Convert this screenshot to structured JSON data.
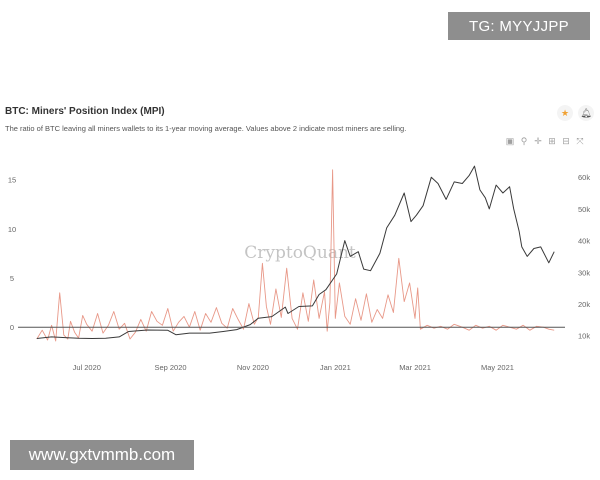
{
  "badges": {
    "top_right": "TG: MYYJJPP",
    "bottom_left": "www.gxtvmmb.com"
  },
  "header": {
    "title": "BTC: Miners' Position Index (MPI)",
    "subtitle": "The ratio of BTC leaving all miners wallets to its 1-year moving average. Values above 2 indicate most miners are selling."
  },
  "icons": {
    "favorite": "star-icon",
    "notify": "bell-icon",
    "toolbar": [
      "camera-icon",
      "zoom-icon",
      "pan-icon",
      "zoom-in-icon",
      "zoom-out-icon",
      "reset-axes-icon"
    ]
  },
  "watermark": "CryptoQuant",
  "colors": {
    "mpi": "#e89888",
    "price": "#3a3a3a",
    "zero_line": "#555555"
  },
  "chart_data": {
    "type": "line",
    "title": "BTC: Miners' Position Index (MPI)",
    "x_ticks": [
      "Jul 2020",
      "Sep 2020",
      "Nov 2020",
      "Jan 2021",
      "Mar 2021",
      "May 2021"
    ],
    "y_left_ticks": [
      "0",
      "5",
      "10",
      "15"
    ],
    "y_left_range": [
      -1.5,
      17.5
    ],
    "y_right_ticks": [
      "10k",
      "20k",
      "30k",
      "40k",
      "50k",
      "60k"
    ],
    "y_right_range": [
      8000,
      67000
    ],
    "x_range": [
      "2020-05-20",
      "2021-06-20"
    ],
    "grid": false,
    "series": [
      {
        "name": "MPI",
        "axis": "left",
        "x": [
          "2020-05-25",
          "2020-05-29",
          "2020-06-02",
          "2020-06-05",
          "2020-06-08",
          "2020-06-11",
          "2020-06-14",
          "2020-06-17",
          "2020-06-19",
          "2020-06-22",
          "2020-06-25",
          "2020-06-28",
          "2020-07-01",
          "2020-07-05",
          "2020-07-09",
          "2020-07-13",
          "2020-07-17",
          "2020-07-21",
          "2020-07-25",
          "2020-07-29",
          "2020-08-02",
          "2020-08-06",
          "2020-08-10",
          "2020-08-14",
          "2020-08-18",
          "2020-08-22",
          "2020-08-26",
          "2020-08-30",
          "2020-09-03",
          "2020-09-07",
          "2020-09-11",
          "2020-09-15",
          "2020-09-19",
          "2020-09-23",
          "2020-09-27",
          "2020-10-01",
          "2020-10-05",
          "2020-10-09",
          "2020-10-13",
          "2020-10-17",
          "2020-10-21",
          "2020-10-25",
          "2020-10-29",
          "2020-11-02",
          "2020-11-05",
          "2020-11-08",
          "2020-11-11",
          "2020-11-14",
          "2020-11-18",
          "2020-11-22",
          "2020-11-26",
          "2020-11-30",
          "2020-12-04",
          "2020-12-08",
          "2020-12-12",
          "2020-12-16",
          "2020-12-20",
          "2020-12-24",
          "2020-12-26",
          "2020-12-28",
          "2020-12-30",
          "2021-01-01",
          "2021-01-04",
          "2021-01-08",
          "2021-01-12",
          "2021-01-16",
          "2021-01-20",
          "2021-01-24",
          "2021-01-28",
          "2021-02-01",
          "2021-02-05",
          "2021-02-09",
          "2021-02-13",
          "2021-02-17",
          "2021-02-21",
          "2021-02-25",
          "2021-03-01",
          "2021-03-03",
          "2021-03-05",
          "2021-03-10",
          "2021-03-15",
          "2021-03-20",
          "2021-03-25",
          "2021-03-30",
          "2021-04-05",
          "2021-04-10",
          "2021-04-15",
          "2021-04-20",
          "2021-04-25",
          "2021-04-30",
          "2021-05-05",
          "2021-05-10",
          "2021-05-15",
          "2021-05-20",
          "2021-05-25",
          "2021-05-30",
          "2021-06-04",
          "2021-06-08",
          "2021-06-12"
        ],
        "y": [
          -1.2,
          -0.3,
          -1.3,
          0.2,
          -1.4,
          3.5,
          -0.8,
          -1.2,
          0.6,
          -0.5,
          -1.1,
          1.2,
          0.3,
          -0.4,
          1.4,
          -0.6,
          0.2,
          1.6,
          -0.2,
          0.4,
          -1.2,
          -0.5,
          0.8,
          -0.4,
          1.6,
          0.6,
          0.2,
          1.9,
          -0.4,
          0.5,
          1.1,
          0.0,
          1.6,
          -0.3,
          1.4,
          0.5,
          2.0,
          0.4,
          -0.1,
          1.9,
          0.8,
          -0.2,
          2.4,
          0.3,
          1.0,
          6.5,
          2.1,
          0.3,
          3.9,
          1.0,
          6.0,
          0.9,
          -0.2,
          3.5,
          0.6,
          4.8,
          0.9,
          3.6,
          -0.4,
          2.5,
          16.0,
          0.9,
          4.5,
          1.1,
          0.3,
          2.9,
          0.7,
          3.4,
          0.5,
          1.8,
          0.9,
          3.3,
          1.5,
          7.0,
          2.6,
          4.5,
          0.9,
          4.0,
          -0.2,
          0.2,
          -0.1,
          0.1,
          -0.2,
          0.3,
          0.0,
          -0.3,
          0.2,
          -0.1,
          0.1,
          -0.3,
          0.2,
          0.0,
          -0.2,
          0.2,
          -0.3,
          0.1,
          0.0,
          -0.2,
          -0.3
        ]
      },
      {
        "name": "BTC Price",
        "axis": "right",
        "x": [
          "2020-05-25",
          "2020-06-05",
          "2020-06-15",
          "2020-06-25",
          "2020-07-05",
          "2020-07-15",
          "2020-07-25",
          "2020-08-01",
          "2020-08-15",
          "2020-08-30",
          "2020-09-05",
          "2020-09-15",
          "2020-09-30",
          "2020-10-10",
          "2020-10-20",
          "2020-10-30",
          "2020-11-05",
          "2020-11-15",
          "2020-11-25",
          "2020-11-27",
          "2020-12-05",
          "2020-12-15",
          "2020-12-20",
          "2020-12-25",
          "2021-01-02",
          "2021-01-08",
          "2021-01-12",
          "2021-01-18",
          "2021-01-22",
          "2021-01-27",
          "2021-02-03",
          "2021-02-08",
          "2021-02-14",
          "2021-02-21",
          "2021-02-26",
          "2021-03-02",
          "2021-03-07",
          "2021-03-13",
          "2021-03-18",
          "2021-03-24",
          "2021-03-30",
          "2021-04-05",
          "2021-04-10",
          "2021-04-14",
          "2021-04-18",
          "2021-04-22",
          "2021-04-25",
          "2021-04-30",
          "2021-05-05",
          "2021-05-10",
          "2021-05-13",
          "2021-05-17",
          "2021-05-19",
          "2021-05-23",
          "2021-05-28",
          "2021-06-02",
          "2021-06-08",
          "2021-06-12"
        ],
        "y": [
          9100,
          9600,
          9400,
          9200,
          9100,
          9200,
          9600,
          11300,
          11800,
          11700,
          10300,
          10800,
          10800,
          11300,
          11900,
          13500,
          15500,
          16000,
          19000,
          17000,
          19200,
          19400,
          23000,
          24500,
          29500,
          40000,
          35000,
          36500,
          31000,
          30500,
          36000,
          44000,
          48000,
          55000,
          46000,
          48000,
          51000,
          60000,
          58000,
          53000,
          58500,
          58000,
          60500,
          63500,
          56000,
          53500,
          50000,
          57500,
          55000,
          57000,
          50000,
          43000,
          38000,
          35000,
          37500,
          38000,
          33000,
          36500
        ]
      }
    ]
  }
}
